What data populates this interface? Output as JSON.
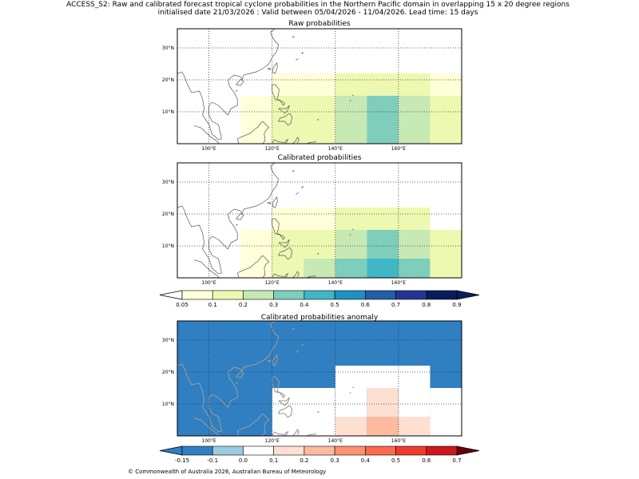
{
  "figure": {
    "title_line1": "ACCESS_S2: Raw and calibrated forecast tropical cyclone probabilities in the Northern Pacific domain in overlapping 15 x 20 degree regions",
    "title_line2": "initialised date 21/03/2026 :  Valid between 05/04/2026 - 11/04/2026. Lead time: 15 days",
    "copyright": "© Commonwealth of Australia 2026, Australian Bureau of Meteorology"
  },
  "colors": {
    "prob_scale": [
      "#ffffd9",
      "#edf8b1",
      "#c7e9b4",
      "#7fcdbb",
      "#41b6c4",
      "#1d91c0",
      "#225ea8",
      "#253494",
      "#081d58"
    ],
    "prob_under": "#ffffff",
    "prob_over": "#081d58",
    "anom_scale": [
      "#2f7fc1",
      "#9ecae1",
      "#ffffff",
      "#fee0d2",
      "#fcbba1",
      "#fc9272",
      "#fb6a4a",
      "#ef3b2c",
      "#cb181d",
      "#99000d"
    ],
    "anom_under": "#2f7fc1",
    "anom_over": "#67000d",
    "coast_prob": "#555555",
    "coast_anom": "#9a9a9a"
  },
  "chart_data": [
    {
      "type": "heatmap",
      "title": "Raw probabilities",
      "x_range": [
        90,
        180
      ],
      "y_range": [
        0,
        36
      ],
      "x_ticks": [
        100,
        120,
        140,
        160
      ],
      "x_tick_labels": [
        "100°E",
        "120°E",
        "140°E",
        "160°E"
      ],
      "y_ticks": [
        10,
        20,
        30
      ],
      "y_tick_labels": [
        "10°N",
        "20°N",
        "30°N"
      ],
      "grid": true,
      "cells": [
        {
          "lon0": 110,
          "lon1": 120,
          "lat0": 0,
          "lat1": 15,
          "value": 0.07
        },
        {
          "lon0": 120,
          "lon1": 130,
          "lat0": 0,
          "lat1": 15,
          "value": 0.12
        },
        {
          "lon0": 130,
          "lon1": 140,
          "lat0": 0,
          "lat1": 15,
          "value": 0.15
        },
        {
          "lon0": 140,
          "lon1": 150,
          "lat0": 0,
          "lat1": 15,
          "value": 0.22
        },
        {
          "lon0": 150,
          "lon1": 160,
          "lat0": 0,
          "lat1": 15,
          "value": 0.32
        },
        {
          "lon0": 160,
          "lon1": 170,
          "lat0": 0,
          "lat1": 15,
          "value": 0.22
        },
        {
          "lon0": 170,
          "lon1": 180,
          "lat0": 0,
          "lat1": 15,
          "value": 0.14
        },
        {
          "lon0": 120,
          "lon1": 130,
          "lat0": 15,
          "lat1": 22,
          "value": 0.07
        },
        {
          "lon0": 130,
          "lon1": 140,
          "lat0": 15,
          "lat1": 22,
          "value": 0.07
        },
        {
          "lon0": 140,
          "lon1": 150,
          "lat0": 15,
          "lat1": 22,
          "value": 0.12
        },
        {
          "lon0": 150,
          "lon1": 160,
          "lat0": 15,
          "lat1": 22,
          "value": 0.12
        },
        {
          "lon0": 160,
          "lon1": 170,
          "lat0": 15,
          "lat1": 22,
          "value": 0.12
        },
        {
          "lon0": 170,
          "lon1": 180,
          "lat0": 15,
          "lat1": 22,
          "value": 0.07
        }
      ]
    },
    {
      "type": "heatmap",
      "title": "Calibrated probabilities",
      "x_range": [
        90,
        180
      ],
      "y_range": [
        0,
        36
      ],
      "x_ticks": [
        100,
        120,
        140,
        160
      ],
      "x_tick_labels": [
        "100°E",
        "120°E",
        "140°E",
        "160°E"
      ],
      "y_ticks": [
        10,
        20,
        30
      ],
      "y_tick_labels": [
        "10°N",
        "20°N",
        "30°N"
      ],
      "grid": true,
      "cells": [
        {
          "lon0": 110,
          "lon1": 120,
          "lat0": 0,
          "lat1": 15,
          "value": 0.07
        },
        {
          "lon0": 120,
          "lon1": 130,
          "lat0": 0,
          "lat1": 15,
          "value": 0.12
        },
        {
          "lon0": 130,
          "lon1": 140,
          "lat0": 6,
          "lat1": 15,
          "value": 0.15
        },
        {
          "lon0": 130,
          "lon1": 140,
          "lat0": 0,
          "lat1": 6,
          "value": 0.22
        },
        {
          "lon0": 140,
          "lon1": 150,
          "lat0": 6,
          "lat1": 15,
          "value": 0.22
        },
        {
          "lon0": 140,
          "lon1": 150,
          "lat0": 0,
          "lat1": 6,
          "value": 0.32
        },
        {
          "lon0": 150,
          "lon1": 160,
          "lat0": 6,
          "lat1": 15,
          "value": 0.32
        },
        {
          "lon0": 150,
          "lon1": 160,
          "lat0": 0,
          "lat1": 6,
          "value": 0.42
        },
        {
          "lon0": 160,
          "lon1": 170,
          "lat0": 6,
          "lat1": 15,
          "value": 0.22
        },
        {
          "lon0": 160,
          "lon1": 170,
          "lat0": 0,
          "lat1": 6,
          "value": 0.32
        },
        {
          "lon0": 170,
          "lon1": 180,
          "lat0": 0,
          "lat1": 15,
          "value": 0.14
        },
        {
          "lon0": 120,
          "lon1": 130,
          "lat0": 15,
          "lat1": 22,
          "value": 0.07
        },
        {
          "lon0": 130,
          "lon1": 140,
          "lat0": 15,
          "lat1": 22,
          "value": 0.07
        },
        {
          "lon0": 140,
          "lon1": 150,
          "lat0": 15,
          "lat1": 22,
          "value": 0.12
        },
        {
          "lon0": 150,
          "lon1": 160,
          "lat0": 15,
          "lat1": 22,
          "value": 0.12
        },
        {
          "lon0": 160,
          "lon1": 170,
          "lat0": 15,
          "lat1": 22,
          "value": 0.12
        }
      ]
    },
    {
      "type": "heatmap",
      "title": "Calibrated probabilities anomaly",
      "x_range": [
        90,
        180
      ],
      "y_range": [
        0,
        36
      ],
      "x_ticks": [
        100,
        120,
        140,
        160
      ],
      "x_tick_labels": [
        "100°E",
        "120°E",
        "140°E",
        "160°E"
      ],
      "y_ticks": [
        10,
        20,
        30
      ],
      "y_tick_labels": [
        "10°N",
        "20°N",
        "30°N"
      ],
      "grid": true,
      "background_value": -0.2,
      "cells": [
        {
          "lon0": 110,
          "lon1": 120,
          "lat0": 0,
          "lat1": 15,
          "value": -0.12
        },
        {
          "lon0": 120,
          "lon1": 140,
          "lat0": 15,
          "lat1": 22,
          "value": -0.12
        },
        {
          "lon0": 120,
          "lon1": 140,
          "lat0": 0,
          "lat1": 15,
          "value": 0.02
        },
        {
          "lon0": 130,
          "lon1": 140,
          "lat0": 0,
          "lat1": 6,
          "value": 0.05
        },
        {
          "lon0": 140,
          "lon1": 170,
          "lat0": 15,
          "lat1": 22,
          "value": 0.02
        },
        {
          "lon0": 170,
          "lon1": 180,
          "lat0": 0,
          "lat1": 15,
          "value": 0.02
        },
        {
          "lon0": 140,
          "lon1": 150,
          "lat0": 6,
          "lat1": 15,
          "value": 0.05
        },
        {
          "lon0": 140,
          "lon1": 150,
          "lat0": 0,
          "lat1": 6,
          "value": 0.15
        },
        {
          "lon0": 150,
          "lon1": 160,
          "lat0": 6,
          "lat1": 15,
          "value": 0.15
        },
        {
          "lon0": 150,
          "lon1": 160,
          "lat0": 0,
          "lat1": 6,
          "value": 0.25
        },
        {
          "lon0": 160,
          "lon1": 170,
          "lat0": 6,
          "lat1": 15,
          "value": 0.05
        },
        {
          "lon0": 160,
          "lon1": 170,
          "lat0": 0,
          "lat1": 6,
          "value": 0.15
        }
      ]
    },
    {
      "type": "colorbar",
      "name": "probability",
      "boundaries": [
        0.05,
        0.1,
        0.2,
        0.3,
        0.4,
        0.5,
        0.6,
        0.7,
        0.8,
        0.9
      ],
      "tick_labels": [
        "0.05",
        "0.1",
        "0.2",
        "0.3",
        "0.4",
        "0.5",
        "0.6",
        "0.7",
        "0.8",
        "0.9"
      ],
      "extend": "both"
    },
    {
      "type": "colorbar",
      "name": "anomaly",
      "boundaries": [
        -0.15,
        -0.1,
        0.0,
        0.1,
        0.2,
        0.3,
        0.4,
        0.5,
        0.6,
        0.7
      ],
      "tick_labels": [
        "-0.15",
        "-0.1",
        "0.0",
        "0.1",
        "0.2",
        "0.3",
        "0.4",
        "0.5",
        "0.6",
        "0.7"
      ],
      "extend": "both"
    }
  ]
}
